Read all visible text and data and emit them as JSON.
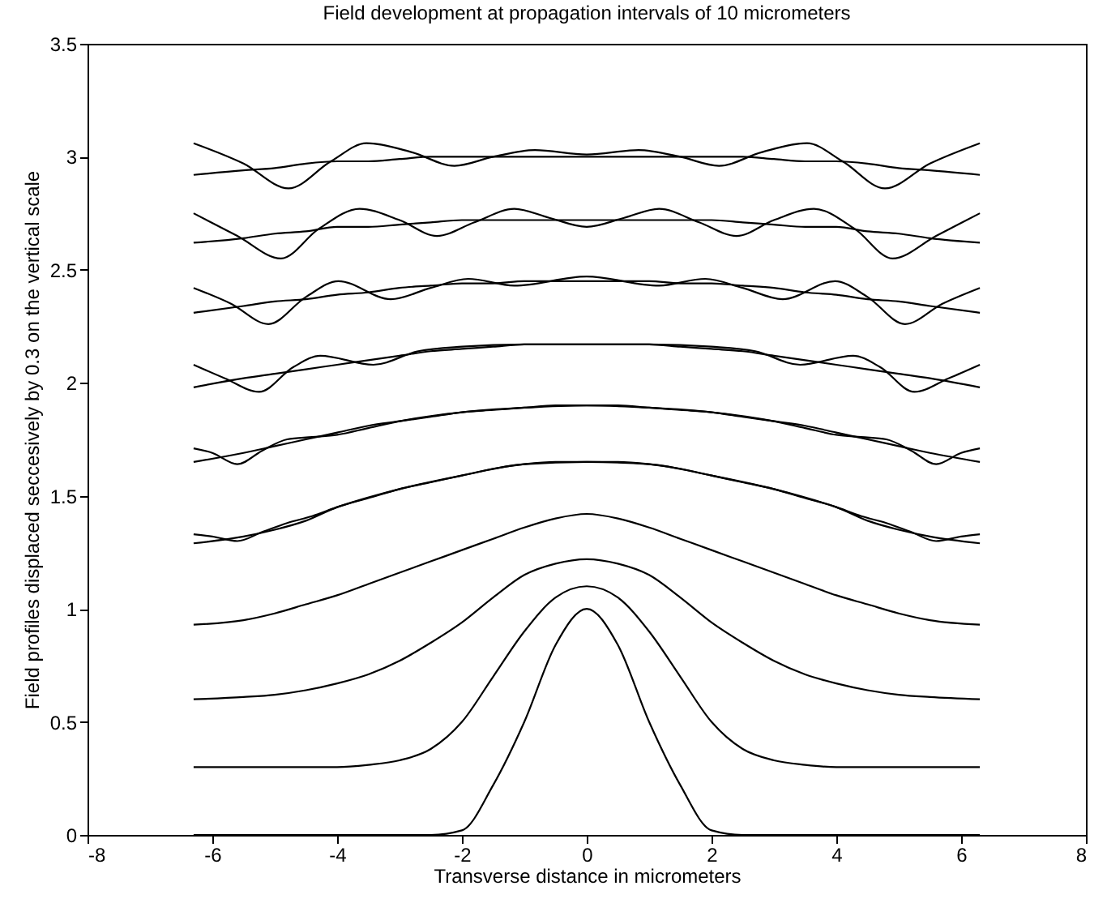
{
  "chart_data": {
    "type": "line",
    "title": "Field development at propagation intervals of 10 micrometers",
    "xlabel": "Transverse distance in micrometers",
    "ylabel": "Field profiles displaced seccesively by 0.3 on the vertical scale",
    "xlim": [
      -8,
      8
    ],
    "xticks": [
      -8,
      -6,
      -4,
      -2,
      0,
      2,
      4,
      6,
      8
    ],
    "ylim": [
      0,
      3.5
    ],
    "yticks": [
      0,
      0.5,
      1,
      1.5,
      2,
      2.5,
      3,
      3.5
    ],
    "x": [
      -6.3,
      -5.5,
      -5,
      -4.5,
      -4,
      -3.5,
      -3,
      -2.5,
      -2,
      -1.5,
      -1,
      -0.5,
      0,
      0.5,
      1,
      1.5,
      2,
      2.5,
      3,
      3.5,
      4,
      4.5,
      5,
      5.5,
      6.3
    ],
    "series": [
      {
        "color": "#000000",
        "values": [
          0,
          0,
          0,
          0,
          0,
          0,
          0,
          0,
          0.02,
          0.22,
          0.5,
          0.84,
          1,
          0.84,
          0.5,
          0.22,
          0.02,
          0,
          0,
          0,
          0,
          0,
          0,
          0,
          0
        ]
      },
      {
        "color": "#000000",
        "values": [
          0.3,
          0.3,
          0.3,
          0.3,
          0.3,
          0.31,
          0.33,
          0.38,
          0.5,
          0.7,
          0.9,
          1.05,
          1.1,
          1.05,
          0.9,
          0.7,
          0.5,
          0.38,
          0.33,
          0.31,
          0.3,
          0.3,
          0.3,
          0.3,
          0.3
        ]
      },
      {
        "color": "#000000",
        "values": [
          0.6,
          0.61,
          0.62,
          0.64,
          0.67,
          0.71,
          0.77,
          0.85,
          0.94,
          1.05,
          1.15,
          1.2,
          1.22,
          1.2,
          1.15,
          1.05,
          0.94,
          0.85,
          0.77,
          0.71,
          0.67,
          0.64,
          0.62,
          0.61,
          0.6
        ]
      },
      {
        "color": "#000000",
        "values": [
          0.93,
          0.95,
          0.98,
          1.02,
          1.06,
          1.11,
          1.16,
          1.21,
          1.26,
          1.31,
          1.36,
          1.4,
          1.42,
          1.4,
          1.36,
          1.31,
          1.26,
          1.21,
          1.16,
          1.11,
          1.06,
          1.02,
          0.98,
          0.95,
          0.93
        ]
      },
      {
        "color": "#000000",
        "values": [
          1.29,
          1.32,
          1.35,
          1.39,
          1.45,
          1.49,
          1.53,
          1.56,
          1.59,
          1.62,
          1.64,
          1.65,
          1.65,
          1.65,
          1.64,
          1.62,
          1.59,
          1.56,
          1.53,
          1.49,
          1.45,
          1.39,
          1.35,
          1.32,
          1.29
        ]
      },
      {
        "color": "#000000",
        "values": [
          1.65,
          1.69,
          1.72,
          1.75,
          1.78,
          1.81,
          1.83,
          1.85,
          1.87,
          1.88,
          1.89,
          1.9,
          1.9,
          1.9,
          1.89,
          1.88,
          1.87,
          1.85,
          1.83,
          1.81,
          1.78,
          1.75,
          1.72,
          1.69,
          1.65
        ]
      },
      {
        "color": "#000000",
        "values": [
          1.98,
          2.02,
          2.04,
          2.06,
          2.08,
          2.1,
          2.12,
          2.14,
          2.15,
          2.16,
          2.17,
          2.17,
          2.17,
          2.17,
          2.17,
          2.16,
          2.15,
          2.14,
          2.12,
          2.1,
          2.08,
          2.06,
          2.04,
          2.02,
          1.98
        ]
      },
      {
        "color": "#000000",
        "values": [
          2.31,
          2.34,
          2.36,
          2.37,
          2.39,
          2.4,
          2.42,
          2.43,
          2.44,
          2.44,
          2.45,
          2.45,
          2.45,
          2.45,
          2.45,
          2.44,
          2.44,
          2.43,
          2.42,
          2.4,
          2.39,
          2.37,
          2.36,
          2.34,
          2.31
        ]
      },
      {
        "color": "#000000",
        "values": [
          2.62,
          2.64,
          2.66,
          2.67,
          2.69,
          2.69,
          2.7,
          2.71,
          2.72,
          2.72,
          2.72,
          2.72,
          2.72,
          2.72,
          2.72,
          2.72,
          2.72,
          2.71,
          2.7,
          2.69,
          2.69,
          2.67,
          2.66,
          2.64,
          2.62
        ]
      },
      {
        "color": "#000000",
        "values": [
          2.92,
          2.94,
          2.95,
          2.97,
          2.98,
          2.98,
          2.99,
          3,
          3,
          3,
          3,
          3,
          3,
          3,
          3,
          3,
          3,
          3,
          2.99,
          2.98,
          2.98,
          2.97,
          2.95,
          2.94,
          2.92
        ]
      },
      {
        "color": "#000000",
        "x": [
          -6.3,
          -6,
          -5.6,
          -5.2,
          -4.8,
          -4.4,
          -4,
          -3,
          -2,
          -1,
          0,
          1,
          2,
          3,
          4,
          4.4,
          4.8,
          5.2,
          5.6,
          6,
          6.3
        ],
        "values": [
          1.33,
          1.32,
          1.3,
          1.34,
          1.38,
          1.41,
          1.45,
          1.53,
          1.59,
          1.64,
          1.65,
          1.64,
          1.59,
          1.53,
          1.45,
          1.41,
          1.38,
          1.34,
          1.3,
          1.32,
          1.33
        ]
      },
      {
        "color": "#000000",
        "x": [
          -6.3,
          -6,
          -5.6,
          -5.2,
          -4.8,
          -4.4,
          -4,
          -3.5,
          -3,
          -2,
          -1,
          0,
          1,
          2,
          3,
          3.5,
          4,
          4.4,
          4.8,
          5.2,
          5.6,
          6,
          6.3
        ],
        "values": [
          1.71,
          1.69,
          1.64,
          1.7,
          1.75,
          1.76,
          1.77,
          1.8,
          1.83,
          1.87,
          1.89,
          1.9,
          1.89,
          1.87,
          1.83,
          1.8,
          1.77,
          1.76,
          1.75,
          1.7,
          1.64,
          1.69,
          1.71
        ]
      },
      {
        "color": "#000000",
        "x": [
          -6.3,
          -5.8,
          -5.25,
          -4.7,
          -4.27,
          -3.42,
          -2.7,
          -2,
          -1,
          0,
          1,
          2,
          2.7,
          3.42,
          4.27,
          4.7,
          5.25,
          5.8,
          6.3
        ],
        "values": [
          2.08,
          2.02,
          1.96,
          2.07,
          2.12,
          2.08,
          2.14,
          2.16,
          2.17,
          2.17,
          2.17,
          2.16,
          2.14,
          2.08,
          2.12,
          2.07,
          1.96,
          2.02,
          2.08
        ]
      },
      {
        "color": "#000000",
        "x": [
          -6.3,
          -5.7,
          -5.1,
          -4.5,
          -3.98,
          -3.14,
          -2.5,
          -1.9,
          -1.16,
          0,
          1.16,
          1.9,
          2.5,
          3.14,
          3.98,
          4.5,
          5.1,
          5.7,
          6.3
        ],
        "values": [
          2.42,
          2.35,
          2.26,
          2.38,
          2.45,
          2.37,
          2.42,
          2.46,
          2.43,
          2.47,
          2.43,
          2.46,
          2.42,
          2.37,
          2.45,
          2.38,
          2.26,
          2.35,
          2.42
        ]
      },
      {
        "color": "#000000",
        "x": [
          -6.3,
          -5.6,
          -4.9,
          -4.3,
          -3.64,
          -3,
          -2.4,
          -1.8,
          -1.16,
          -0.6,
          0,
          0.6,
          1.16,
          1.8,
          2.4,
          3,
          3.64,
          4.3,
          4.9,
          5.6,
          6.3
        ],
        "values": [
          2.75,
          2.65,
          2.55,
          2.68,
          2.77,
          2.72,
          2.65,
          2.71,
          2.77,
          2.73,
          2.69,
          2.73,
          2.77,
          2.71,
          2.65,
          2.72,
          2.77,
          2.68,
          2.55,
          2.65,
          2.75
        ]
      },
      {
        "color": "#000000",
        "x": [
          -6.3,
          -5.5,
          -4.78,
          -4.1,
          -3.53,
          -2.8,
          -2.12,
          -1.5,
          -0.83,
          0,
          0.83,
          1.5,
          2.12,
          2.8,
          3.53,
          4.1,
          4.78,
          5.5,
          6.3
        ],
        "values": [
          3.06,
          2.97,
          2.86,
          2.98,
          3.06,
          3.02,
          2.96,
          3,
          3.03,
          3.01,
          3.03,
          3,
          2.96,
          3.02,
          3.06,
          2.98,
          2.86,
          2.97,
          3.06
        ]
      }
    ]
  }
}
